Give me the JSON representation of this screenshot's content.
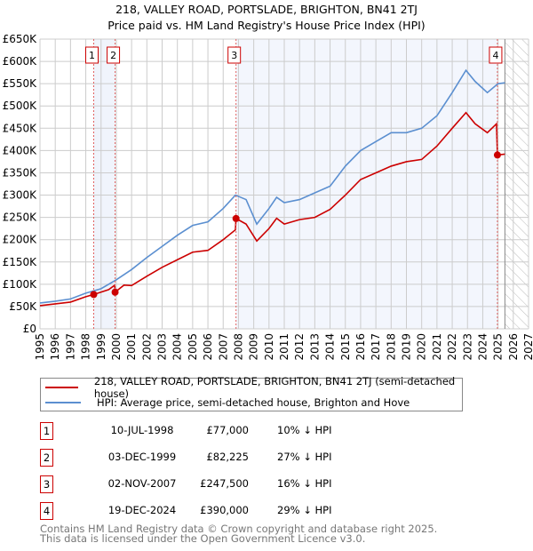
{
  "chart_data": {
    "type": "line",
    "title": "218, VALLEY ROAD, PORTSLADE, BRIGHTON, BN41 2TJ",
    "subtitle": "Price paid vs. HM Land Registry's House Price Index (HPI)",
    "xlim": [
      1995,
      2027
    ],
    "ylim": [
      0,
      650000
    ],
    "x_ticks": [
      "1995",
      "1996",
      "1997",
      "1998",
      "1999",
      "2000",
      "2001",
      "2002",
      "2003",
      "2004",
      "2005",
      "2006",
      "2007",
      "2008",
      "2009",
      "2010",
      "2011",
      "2012",
      "2013",
      "2014",
      "2015",
      "2016",
      "2017",
      "2018",
      "2019",
      "2020",
      "2021",
      "2022",
      "2023",
      "2024",
      "2025",
      "2026",
      "2027"
    ],
    "y_ticks": [
      {
        "v": 0,
        "label": "£0"
      },
      {
        "v": 50000,
        "label": "£50K"
      },
      {
        "v": 100000,
        "label": "£100K"
      },
      {
        "v": 150000,
        "label": "£150K"
      },
      {
        "v": 200000,
        "label": "£200K"
      },
      {
        "v": 250000,
        "label": "£250K"
      },
      {
        "v": 300000,
        "label": "£300K"
      },
      {
        "v": 350000,
        "label": "£350K"
      },
      {
        "v": 400000,
        "label": "£400K"
      },
      {
        "v": 450000,
        "label": "£450K"
      },
      {
        "v": 500000,
        "label": "£500K"
      },
      {
        "v": 550000,
        "label": "£550K"
      },
      {
        "v": 600000,
        "label": "£600K"
      },
      {
        "v": 650000,
        "label": "£650K"
      }
    ],
    "grid": true,
    "forecast_start": 2025.45,
    "series": [
      {
        "name": "218, VALLEY ROAD, PORTSLADE, BRIGHTON, BN41 2TJ (semi-detached house)",
        "color": "#cc0000",
        "points": [
          [
            1995,
            52000
          ],
          [
            1996,
            56000
          ],
          [
            1997,
            60000
          ],
          [
            1998,
            72000
          ],
          [
            1998.52,
            77000
          ],
          [
            1999.5,
            88000
          ],
          [
            1999.9,
            98000
          ],
          [
            1999.92,
            82225
          ],
          [
            2000.5,
            98000
          ],
          [
            2001,
            97000
          ],
          [
            2002,
            118000
          ],
          [
            2003,
            138000
          ],
          [
            2004,
            155000
          ],
          [
            2005,
            172000
          ],
          [
            2006,
            176000
          ],
          [
            2007,
            200000
          ],
          [
            2007.8,
            222000
          ],
          [
            2007.84,
            247500
          ],
          [
            2008.5,
            235000
          ],
          [
            2009.2,
            197000
          ],
          [
            2010,
            225000
          ],
          [
            2010.5,
            248000
          ],
          [
            2011,
            235000
          ],
          [
            2012,
            245000
          ],
          [
            2013,
            250000
          ],
          [
            2014,
            268000
          ],
          [
            2015,
            300000
          ],
          [
            2016,
            335000
          ],
          [
            2017,
            350000
          ],
          [
            2018,
            365000
          ],
          [
            2019,
            375000
          ],
          [
            2020,
            380000
          ],
          [
            2021,
            410000
          ],
          [
            2022,
            450000
          ],
          [
            2022.9,
            485000
          ],
          [
            2023.5,
            460000
          ],
          [
            2024.3,
            440000
          ],
          [
            2024.9,
            460000
          ],
          [
            2024.96,
            390000
          ],
          [
            2025.45,
            392000
          ]
        ]
      },
      {
        "name": "HPI: Average price, semi-detached house, Brighton and Hove",
        "color": "#5b8fd0",
        "points": [
          [
            1995,
            58000
          ],
          [
            1996,
            62000
          ],
          [
            1997,
            67000
          ],
          [
            1998,
            80000
          ],
          [
            1999,
            90000
          ],
          [
            2000,
            110000
          ],
          [
            2001,
            133000
          ],
          [
            2002,
            160000
          ],
          [
            2003,
            185000
          ],
          [
            2004,
            210000
          ],
          [
            2005,
            232000
          ],
          [
            2006,
            240000
          ],
          [
            2007,
            270000
          ],
          [
            2007.8,
            300000
          ],
          [
            2008.5,
            290000
          ],
          [
            2009.2,
            235000
          ],
          [
            2010,
            270000
          ],
          [
            2010.5,
            295000
          ],
          [
            2011,
            283000
          ],
          [
            2012,
            290000
          ],
          [
            2013,
            305000
          ],
          [
            2014,
            320000
          ],
          [
            2015,
            365000
          ],
          [
            2016,
            400000
          ],
          [
            2017,
            420000
          ],
          [
            2018,
            440000
          ],
          [
            2019,
            440000
          ],
          [
            2020,
            450000
          ],
          [
            2021,
            478000
          ],
          [
            2022,
            530000
          ],
          [
            2022.9,
            580000
          ],
          [
            2023.5,
            555000
          ],
          [
            2024.3,
            530000
          ],
          [
            2025,
            550000
          ],
          [
            2025.45,
            552000
          ]
        ]
      }
    ],
    "sales": [
      {
        "n": "1",
        "x": 1998.52,
        "price": 77000,
        "date": "10-JUL-1998",
        "price_label": "£77,000",
        "hpi": "10% ↓ HPI"
      },
      {
        "n": "2",
        "x": 1999.92,
        "price": 82225,
        "date": "03-DEC-1999",
        "price_label": "£82,225",
        "hpi": "27% ↓ HPI"
      },
      {
        "n": "3",
        "x": 2007.84,
        "price": 247500,
        "date": "02-NOV-2007",
        "price_label": "£247,500",
        "hpi": "16% ↓ HPI"
      },
      {
        "n": "4",
        "x": 2024.96,
        "price": 390000,
        "date": "19-DEC-2024",
        "price_label": "£390,000",
        "hpi": "29% ↓ HPI"
      }
    ]
  },
  "legend": {
    "items": [
      "218, VALLEY ROAD, PORTSLADE, BRIGHTON, BN41 2TJ (semi-detached house)",
      "HPI: Average price, semi-detached house, Brighton and Hove"
    ]
  },
  "footer": {
    "line1": "Contains HM Land Registry data © Crown copyright and database right 2025.",
    "line2": "This data is licensed under the Open Government Licence v3.0."
  }
}
